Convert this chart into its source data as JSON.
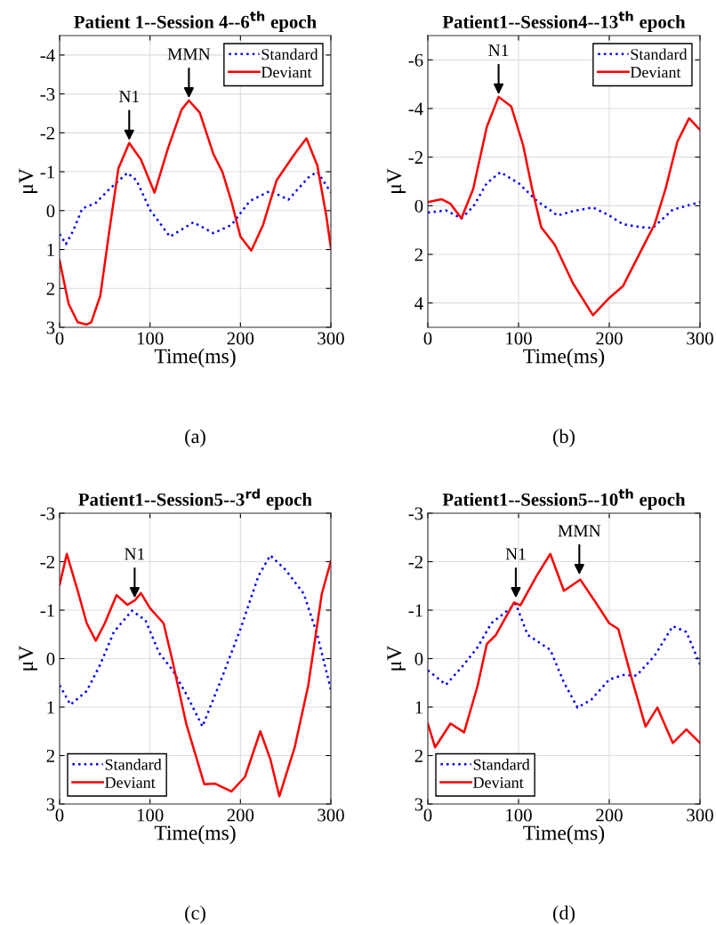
{
  "chart_data": [
    {
      "type": "line",
      "title": "Patient 1--Session 4--6$^{th}$ epoch",
      "xlabel": "Time(ms)",
      "ylabel": "μV",
      "xlim": [
        0,
        300
      ],
      "xticks": [
        0,
        100,
        200,
        300
      ],
      "ylim": [
        3,
        -4.5
      ],
      "yticks": [
        -4,
        -3,
        -2,
        -1,
        0,
        1,
        2,
        3
      ],
      "grid": true,
      "legend": "top right",
      "series": [
        {
          "name": "Standard",
          "color": "#0000ff",
          "line_style": "dotted",
          "x": [
            0,
            7,
            15,
            25,
            40,
            55,
            75,
            85,
            100,
            122,
            148,
            170,
            190,
            210,
            233,
            253,
            275,
            285,
            300
          ],
          "values": [
            0.6,
            0.86,
            0.52,
            -0.05,
            -0.2,
            -0.55,
            -0.97,
            -0.78,
            -0.02,
            0.67,
            0.3,
            0.58,
            0.37,
            -0.24,
            -0.51,
            -0.28,
            -0.85,
            -1.0,
            -0.47
          ]
        },
        {
          "name": "Deviant",
          "color": "#ff0000",
          "line_style": "solid",
          "x": [
            0,
            10,
            20,
            30,
            35,
            45,
            55,
            65,
            77,
            90,
            105,
            120,
            135,
            143,
            155,
            170,
            180,
            190,
            200,
            212,
            225,
            240,
            260,
            273,
            285,
            295,
            300
          ],
          "values": [
            1.28,
            2.4,
            2.87,
            2.93,
            2.87,
            2.19,
            0.52,
            -1.08,
            -1.74,
            -1.31,
            -0.46,
            -1.61,
            -2.6,
            -2.83,
            -2.52,
            -1.46,
            -1.0,
            -0.24,
            0.67,
            1.03,
            0.37,
            -0.78,
            -1.46,
            -1.86,
            -1.16,
            0.14,
            0.96
          ]
        }
      ],
      "annotations": [
        {
          "text": "N1",
          "x": 77,
          "y": -1.74
        },
        {
          "text": "MMN",
          "x": 143,
          "y": -2.83
        },
        "(a)"
      ]
    },
    {
      "type": "line",
      "title": "Patient1--Session4--13$^{th}$ epoch",
      "xlabel": "Time(ms)",
      "ylabel": "μV",
      "xlim": [
        0,
        300
      ],
      "xticks": [
        0,
        100,
        200,
        300
      ],
      "ylim": [
        5,
        -7
      ],
      "yticks": [
        -6,
        -4,
        -2,
        0,
        2,
        4
      ],
      "grid": true,
      "legend": "top right",
      "series": [
        {
          "name": "Standard",
          "color": "#0000ff",
          "line_style": "dotted",
          "x": [
            0,
            20,
            37,
            50,
            65,
            80,
            100,
            120,
            143,
            160,
            182,
            200,
            215,
            235,
            248,
            270,
            300
          ],
          "values": [
            0.28,
            0.19,
            0.52,
            0.04,
            -0.93,
            -1.38,
            -0.93,
            -0.21,
            0.4,
            0.22,
            0.07,
            0.4,
            0.76,
            0.88,
            0.91,
            0.16,
            -0.15
          ]
        },
        {
          "name": "Deviant",
          "color": "#ff0000",
          "line_style": "solid",
          "x": [
            0,
            15,
            25,
            37,
            50,
            65,
            78,
            92,
            105,
            115,
            125,
            140,
            160,
            182,
            200,
            215,
            235,
            250,
            262,
            275,
            288,
            300
          ],
          "values": [
            -0.15,
            -0.27,
            -0.08,
            0.52,
            -0.69,
            -3.24,
            -4.48,
            -4.08,
            -2.5,
            -0.69,
            0.88,
            1.61,
            3.19,
            4.5,
            3.79,
            3.31,
            1.85,
            0.76,
            -0.69,
            -2.63,
            -3.6,
            -3.12
          ]
        }
      ],
      "annotations": [
        {
          "text": "N1",
          "x": 78,
          "y": -4.48
        },
        "(b)"
      ]
    },
    {
      "type": "line",
      "title": "Patient1--Session5--3$^{rd}$ epoch",
      "xlabel": "Time(ms)",
      "ylabel": "μV",
      "xlim": [
        0,
        300
      ],
      "xticks": [
        0,
        100,
        200,
        300
      ],
      "ylim": [
        3,
        -3
      ],
      "yticks": [
        -3,
        -2,
        -1,
        0,
        1,
        2,
        3
      ],
      "grid": true,
      "legend": "bottom left",
      "series": [
        {
          "name": "Standard",
          "color": "#0000ff",
          "line_style": "dotted",
          "x": [
            0,
            12,
            30,
            45,
            60,
            80,
            95,
            110,
            125,
            140,
            158,
            180,
            200,
            220,
            233,
            250,
            270,
            285,
            300
          ],
          "values": [
            0.55,
            0.95,
            0.67,
            0.12,
            -0.55,
            -0.99,
            -0.79,
            -0.12,
            0.24,
            0.73,
            1.4,
            0.37,
            -0.61,
            -1.71,
            -2.13,
            -1.83,
            -1.34,
            -0.49,
            0.64
          ]
        },
        {
          "name": "Deviant",
          "color": "#ff0000",
          "line_style": "solid",
          "x": [
            0,
            8,
            20,
            30,
            40,
            50,
            63,
            75,
            83,
            90,
            100,
            115,
            125,
            140,
            160,
            172,
            190,
            205,
            222,
            233,
            243,
            260,
            275,
            290,
            300
          ],
          "values": [
            -1.52,
            -2.16,
            -1.4,
            -0.73,
            -0.37,
            -0.73,
            -1.31,
            -1.11,
            -1.2,
            -1.35,
            -1.04,
            -0.73,
            0.06,
            1.34,
            2.59,
            2.58,
            2.74,
            2.44,
            1.5,
            2.07,
            2.84,
            1.83,
            0.55,
            -1.34,
            -2.01
          ]
        }
      ],
      "annotations": [
        {
          "text": "N1",
          "x": 83,
          "y": -1.2
        },
        "(c)"
      ]
    },
    {
      "type": "line",
      "title": "Patient1--Session5--10$^{th}$ epoch",
      "xlabel": "Time(ms)",
      "ylabel": "μV",
      "xlim": [
        0,
        300
      ],
      "xticks": [
        0,
        100,
        200,
        300
      ],
      "ylim": [
        3,
        -3
      ],
      "yticks": [
        -3,
        -2,
        -1,
        0,
        1,
        2,
        3
      ],
      "grid": true,
      "legend": "bottom left",
      "series": [
        {
          "name": "Standard",
          "color": "#0000ff",
          "line_style": "dotted",
          "x": [
            0,
            20,
            40,
            55,
            70,
            85,
            97,
            110,
            135,
            150,
            165,
            180,
            200,
            215,
            230,
            250,
            270,
            285,
            300
          ],
          "values": [
            0.24,
            0.54,
            0.12,
            -0.24,
            -0.73,
            -0.95,
            -1.13,
            -0.49,
            -0.18,
            0.49,
            1.01,
            0.85,
            0.43,
            0.34,
            0.35,
            -0.06,
            -0.67,
            -0.55,
            0.12
          ]
        },
        {
          "name": "Deviant",
          "color": "#ff0000",
          "line_style": "solid",
          "x": [
            0,
            8,
            25,
            40,
            55,
            65,
            75,
            95,
            102,
            120,
            135,
            150,
            168,
            185,
            200,
            210,
            225,
            240,
            253,
            270,
            285,
            300
          ],
          "values": [
            1.34,
            1.83,
            1.34,
            1.52,
            0.55,
            -0.3,
            -0.49,
            -1.16,
            -1.1,
            -1.71,
            -2.16,
            -1.4,
            -1.63,
            -1.16,
            -0.73,
            -0.61,
            0.43,
            1.4,
            1.01,
            1.74,
            1.46,
            1.74
          ]
        }
      ],
      "annotations": [
        {
          "text": "N1",
          "x": 97,
          "y": -1.2
        },
        {
          "text": "MMN",
          "x": 167,
          "y": -1.68
        },
        "(d)"
      ]
    }
  ]
}
